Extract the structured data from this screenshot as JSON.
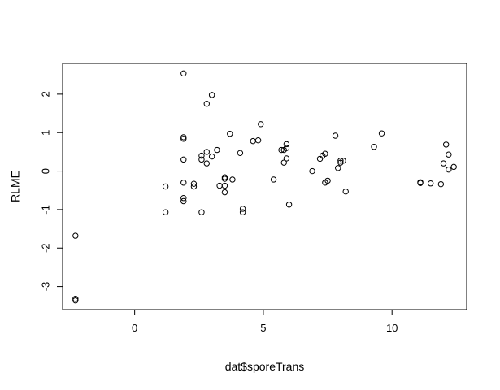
{
  "chart_data": {
    "type": "scatter",
    "xlabel": "dat$sporeTrans",
    "ylabel": "RLME",
    "xlim": [
      -2.8,
      12.9
    ],
    "ylim": [
      -3.6,
      2.8
    ],
    "x_ticks": [
      0,
      5,
      10
    ],
    "y_ticks": [
      -3,
      -2,
      -1,
      0,
      1,
      2
    ],
    "grid": false,
    "legend": "none",
    "marker": "open-circle",
    "points": [
      {
        "x": -2.3,
        "y": -1.68
      },
      {
        "x": -2.3,
        "y": -3.32
      },
      {
        "x": -2.3,
        "y": -3.36
      },
      {
        "x": 1.2,
        "y": -0.4
      },
      {
        "x": 1.2,
        "y": -1.07
      },
      {
        "x": 1.9,
        "y": 2.54
      },
      {
        "x": 1.9,
        "y": 0.88
      },
      {
        "x": 1.9,
        "y": 0.84
      },
      {
        "x": 1.9,
        "y": 0.3
      },
      {
        "x": 1.9,
        "y": -0.3
      },
      {
        "x": 1.9,
        "y": -0.7
      },
      {
        "x": 1.9,
        "y": -0.78
      },
      {
        "x": 2.3,
        "y": -0.33
      },
      {
        "x": 2.3,
        "y": -0.4
      },
      {
        "x": 2.6,
        "y": 0.4
      },
      {
        "x": 2.6,
        "y": 0.3
      },
      {
        "x": 2.6,
        "y": -1.07
      },
      {
        "x": 2.8,
        "y": 1.75
      },
      {
        "x": 2.8,
        "y": 0.5
      },
      {
        "x": 2.8,
        "y": 0.2
      },
      {
        "x": 3.0,
        "y": 1.98
      },
      {
        "x": 3.0,
        "y": 0.38
      },
      {
        "x": 3.2,
        "y": 0.55
      },
      {
        "x": 3.3,
        "y": -0.38
      },
      {
        "x": 3.5,
        "y": -0.16
      },
      {
        "x": 3.5,
        "y": -0.2
      },
      {
        "x": 3.5,
        "y": -0.38
      },
      {
        "x": 3.5,
        "y": -0.55
      },
      {
        "x": 3.7,
        "y": 0.97
      },
      {
        "x": 3.8,
        "y": -0.22
      },
      {
        "x": 4.1,
        "y": 0.47
      },
      {
        "x": 4.2,
        "y": -0.98
      },
      {
        "x": 4.2,
        "y": -1.07
      },
      {
        "x": 4.6,
        "y": 0.78
      },
      {
        "x": 4.8,
        "y": 0.8
      },
      {
        "x": 4.9,
        "y": 1.22
      },
      {
        "x": 5.4,
        "y": -0.22
      },
      {
        "x": 5.7,
        "y": 0.55
      },
      {
        "x": 5.8,
        "y": 0.55
      },
      {
        "x": 5.8,
        "y": 0.22
      },
      {
        "x": 5.9,
        "y": 0.7
      },
      {
        "x": 5.9,
        "y": 0.6
      },
      {
        "x": 5.9,
        "y": 0.33
      },
      {
        "x": 6.0,
        "y": -0.87
      },
      {
        "x": 6.9,
        "y": 0.0
      },
      {
        "x": 7.2,
        "y": 0.32
      },
      {
        "x": 7.3,
        "y": 0.4
      },
      {
        "x": 7.4,
        "y": 0.45
      },
      {
        "x": 7.4,
        "y": -0.3
      },
      {
        "x": 7.5,
        "y": -0.25
      },
      {
        "x": 7.8,
        "y": 0.92
      },
      {
        "x": 7.9,
        "y": 0.08
      },
      {
        "x": 8.0,
        "y": 0.27
      },
      {
        "x": 8.0,
        "y": 0.22
      },
      {
        "x": 8.1,
        "y": 0.27
      },
      {
        "x": 8.2,
        "y": -0.53
      },
      {
        "x": 9.3,
        "y": 0.63
      },
      {
        "x": 9.6,
        "y": 0.98
      },
      {
        "x": 11.1,
        "y": -0.29
      },
      {
        "x": 11.1,
        "y": -0.31
      },
      {
        "x": 11.5,
        "y": -0.32
      },
      {
        "x": 11.9,
        "y": -0.34
      },
      {
        "x": 12.0,
        "y": 0.2
      },
      {
        "x": 12.1,
        "y": 0.69
      },
      {
        "x": 12.2,
        "y": 0.43
      },
      {
        "x": 12.2,
        "y": 0.04
      },
      {
        "x": 12.4,
        "y": 0.11
      }
    ]
  }
}
